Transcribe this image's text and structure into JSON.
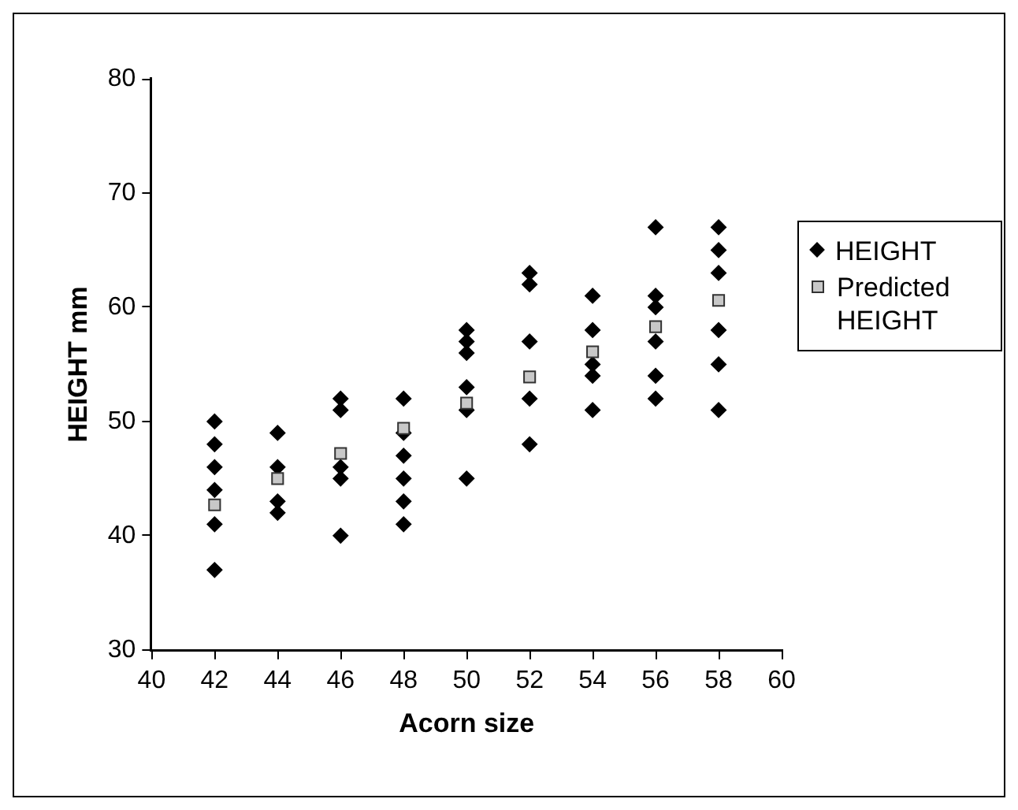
{
  "chart_data": {
    "type": "scatter",
    "xlabel": "Acorn size",
    "ylabel": "HEIGHT mm",
    "xlim": [
      40,
      60
    ],
    "xticks": [
      40,
      42,
      44,
      46,
      48,
      50,
      52,
      54,
      56,
      58,
      60
    ],
    "ylim": [
      30,
      80
    ],
    "yticks": [
      30,
      40,
      50,
      60,
      70,
      80
    ],
    "grid": false,
    "legend": "right",
    "series": [
      {
        "name": "HEIGHT",
        "color": "#000000",
        "marker": "diamond",
        "x": [
          42,
          42,
          42,
          42,
          42,
          42,
          44,
          44,
          44,
          44,
          46,
          46,
          46,
          46,
          46,
          48,
          48,
          48,
          48,
          48,
          48,
          50,
          50,
          50,
          50,
          50,
          50,
          52,
          52,
          52,
          52,
          52,
          54,
          54,
          54,
          54,
          54,
          56,
          56,
          56,
          56,
          56,
          56,
          58,
          58,
          58,
          58,
          58,
          58
        ],
        "values": [
          50,
          48,
          46,
          44,
          41,
          37,
          49,
          46,
          43,
          42,
          52,
          51,
          46,
          45,
          40,
          52,
          49,
          47,
          45,
          43,
          41,
          58,
          57,
          56,
          53,
          51,
          45,
          63,
          62,
          57,
          52,
          48,
          61,
          58,
          55,
          54,
          51,
          67,
          61,
          60,
          57,
          54,
          52,
          67,
          65,
          63,
          58,
          55,
          51
        ]
      },
      {
        "name": "Predicted HEIGHT",
        "color": "#c8c8c8",
        "marker": "square",
        "x": [
          42,
          44,
          46,
          48,
          50,
          52,
          54,
          56,
          58
        ],
        "values": [
          42.7,
          45,
          47.2,
          49.4,
          51.6,
          53.9,
          56.1,
          58.3,
          60.6
        ]
      }
    ]
  }
}
